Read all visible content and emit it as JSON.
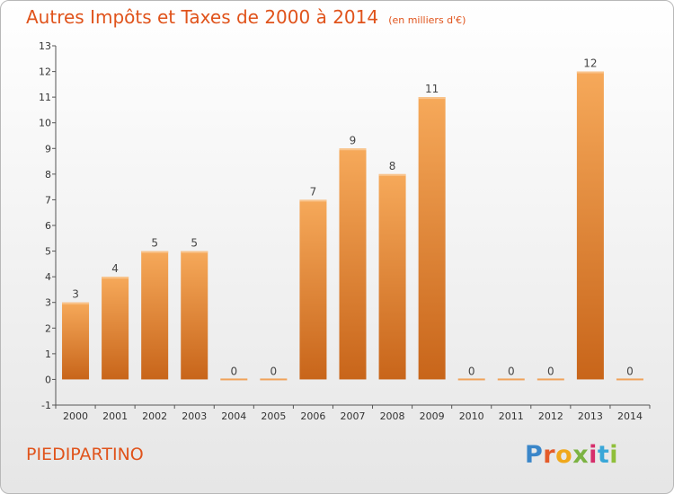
{
  "header": {
    "title": "Autres Impôts et Taxes de 2000 à 2014",
    "subtitle": "(en milliers d'€)"
  },
  "footer": {
    "commune": "PIEDIPARTINO",
    "logo": "Proxiti"
  },
  "colors": {
    "accent": "#e0531b",
    "bar_light": "#f6a95a",
    "bar_dark": "#c8651a"
  },
  "chart_data": {
    "type": "bar",
    "title": "Autres Impôts et Taxes de 2000 à 2014",
    "subtitle": "(en milliers d'€)",
    "xlabel": "",
    "ylabel": "",
    "categories": [
      "2000",
      "2001",
      "2002",
      "2003",
      "2004",
      "2005",
      "2006",
      "2007",
      "2008",
      "2009",
      "2010",
      "2011",
      "2012",
      "2013",
      "2014"
    ],
    "values": [
      3,
      4,
      5,
      5,
      0,
      0,
      7,
      9,
      8,
      11,
      0,
      0,
      0,
      12,
      0
    ],
    "ylim": [
      -1,
      13
    ],
    "yticks": [
      -1,
      0,
      1,
      2,
      3,
      4,
      5,
      6,
      7,
      8,
      9,
      10,
      11,
      12,
      13
    ],
    "grid": false,
    "legend": "none"
  }
}
